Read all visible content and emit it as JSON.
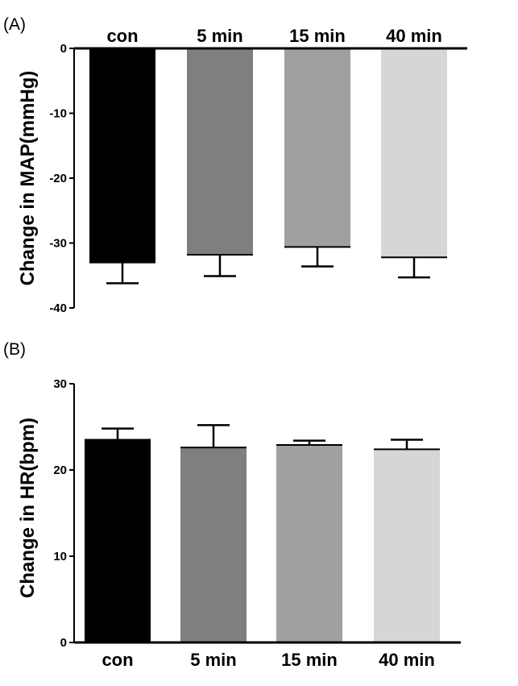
{
  "chart_data": [
    {
      "type": "bar",
      "panel_label": "(A)",
      "categories": [
        "con",
        "5 min",
        "15 min",
        "40 min"
      ],
      "values": [
        -33,
        -31.8,
        -30.6,
        -32.2
      ],
      "error": [
        3.2,
        3.3,
        3.0,
        3.1
      ],
      "colors": [
        "#000000",
        "#7f7f7f",
        "#a0a0a0",
        "#d6d6d6"
      ],
      "ylabel": "Change in MAP(mmHg)",
      "ylim": [
        -40,
        0
      ],
      "yticks": [
        0,
        -10,
        -20,
        -30,
        -40
      ],
      "category_labels_position": "top",
      "grid": false
    },
    {
      "type": "bar",
      "panel_label": "(B)",
      "categories": [
        "con",
        "5 min",
        "15 min",
        "40 min"
      ],
      "values": [
        23.5,
        22.6,
        22.9,
        22.4
      ],
      "error": [
        1.3,
        2.6,
        0.5,
        1.1
      ],
      "colors": [
        "#000000",
        "#7f7f7f",
        "#a0a0a0",
        "#d6d6d6"
      ],
      "ylabel": "Change in HR(bpm)",
      "ylim": [
        0,
        30
      ],
      "yticks": [
        0,
        10,
        20,
        30
      ],
      "category_labels_position": "bottom",
      "grid": false
    }
  ]
}
